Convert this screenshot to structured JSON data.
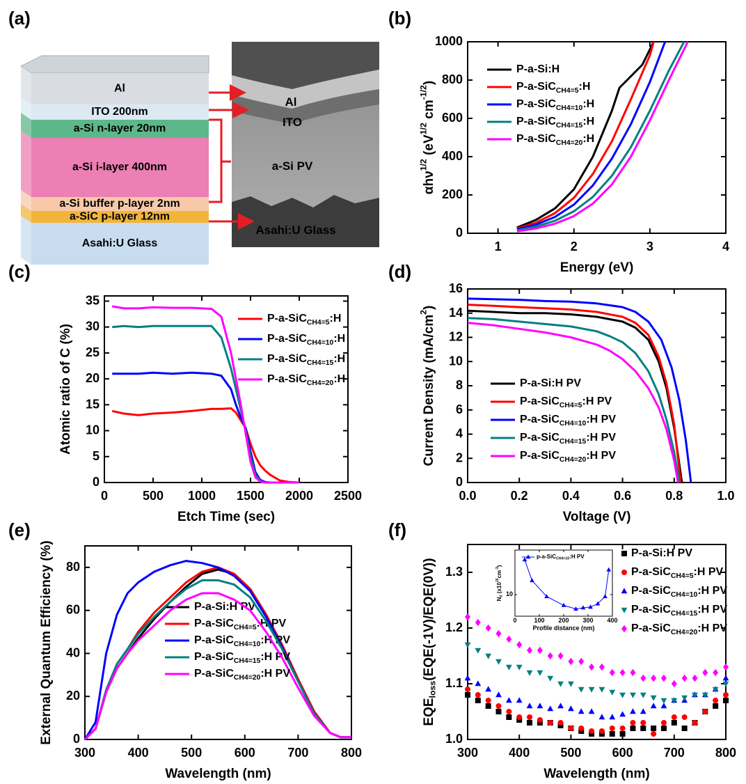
{
  "diagram": {
    "panel_label": "(a)",
    "layers": [
      {
        "label": "Al",
        "color": "#d9dde2"
      },
      {
        "label": "ITO 200nm",
        "color": "#dce9f3"
      },
      {
        "label": "a-Si n-layer  20nm",
        "color": "#5cb88a"
      },
      {
        "label": "a-Si i-layer 400nm",
        "color": "#ec7fb4"
      },
      {
        "label": "a-Si buffer p-layer 2nm",
        "color": "#f7c9a8"
      },
      {
        "label": "a-SiC p-layer 12nm",
        "color": "#f2b53a"
      },
      {
        "label": "Asahi:U Glass",
        "color": "#c7dcef"
      }
    ],
    "tem_labels": [
      "Al",
      "ITO",
      "a-Si PV",
      "Asahi:U Glass"
    ]
  },
  "chart_data": [
    {
      "type": "line",
      "panel_label": "(b)",
      "x_label": "Energy (eV)",
      "y_label": "αhν^{1/2} (eV^{1/2} cm^{-1/2})",
      "xlim": [
        0.6,
        4
      ],
      "xticks": [
        1,
        2,
        3,
        4
      ],
      "ylim": [
        0,
        1000
      ],
      "yticks": [
        0,
        200,
        400,
        600,
        800,
        1000
      ],
      "legend": "upper left",
      "series": [
        {
          "name": "P-a-Si:H",
          "color": "#000000",
          "x": [
            1.25,
            1.5,
            1.75,
            2.0,
            2.25,
            2.5,
            2.6,
            2.75,
            2.9,
            3.05
          ],
          "values": [
            30,
            70,
            130,
            230,
            400,
            640,
            760,
            820,
            880,
            1000
          ]
        },
        {
          "name": "P-a-SiC_{CH4=5}:H",
          "color": "#ff0000",
          "x": [
            1.25,
            1.5,
            1.75,
            2.0,
            2.25,
            2.5,
            2.75,
            3.0,
            3.05
          ],
          "values": [
            25,
            55,
            105,
            185,
            310,
            480,
            700,
            930,
            1000
          ]
        },
        {
          "name": "P-a-SiC_{CH4=10}:H",
          "color": "#0000ff",
          "x": [
            1.25,
            1.5,
            1.75,
            2.0,
            2.25,
            2.5,
            2.75,
            3.0,
            3.2
          ],
          "values": [
            20,
            45,
            85,
            150,
            250,
            390,
            570,
            790,
            1000
          ]
        },
        {
          "name": "P-a-SiC_{CH4=15}:H",
          "color": "#008080",
          "x": [
            1.25,
            1.5,
            1.75,
            2.0,
            2.25,
            2.5,
            2.75,
            3.0,
            3.25,
            3.45
          ],
          "values": [
            15,
            35,
            65,
            115,
            190,
            300,
            450,
            640,
            850,
            1000
          ]
        },
        {
          "name": "P-a-SiC_{CH4=20}:H",
          "color": "#ff00ff",
          "x": [
            1.25,
            1.5,
            1.75,
            2.0,
            2.25,
            2.5,
            2.75,
            3.0,
            3.25,
            3.5
          ],
          "values": [
            10,
            25,
            50,
            90,
            155,
            255,
            400,
            590,
            800,
            1000
          ]
        }
      ]
    },
    {
      "type": "line",
      "panel_label": "(c)",
      "x_label": "Etch Time (sec)",
      "y_label": "Atomic ratio of C (%)",
      "xlim": [
        0,
        2500
      ],
      "xticks": [
        0,
        500,
        1000,
        1500,
        2000,
        2500
      ],
      "ylim": [
        0,
        36
      ],
      "yticks": [
        0,
        5,
        10,
        15,
        20,
        25,
        30,
        35
      ],
      "legend": "upper right",
      "x": [
        80,
        200,
        350,
        500,
        700,
        900,
        1100,
        1200,
        1300,
        1350,
        1400,
        1450,
        1500,
        1550,
        1600,
        1650,
        1700,
        1800,
        1900,
        2000
      ],
      "series": [
        {
          "name": "P-a-SiC_{CH4=5}:H",
          "color": "#ff0000",
          "values": [
            13.8,
            13.3,
            13.0,
            13.3,
            13.5,
            13.8,
            14.2,
            14.2,
            14.3,
            13.5,
            12,
            10.5,
            7.5,
            5,
            3.3,
            2.3,
            1.5,
            0.4,
            0.1,
            0
          ]
        },
        {
          "name": "P-a-SiC_{CH4=10}:H",
          "color": "#0000ff",
          "values": [
            21,
            21,
            21,
            21.2,
            21,
            21.2,
            21,
            20.6,
            18,
            15,
            12.5,
            10.5,
            6,
            2,
            0.5,
            0.1,
            0,
            0,
            0,
            0
          ]
        },
        {
          "name": "P-a-SiC_{CH4=15}:H",
          "color": "#008080",
          "values": [
            30,
            30.2,
            30,
            30.2,
            30.2,
            30.2,
            30.2,
            28,
            22,
            18,
            14,
            10,
            5,
            1.5,
            0.3,
            0,
            0,
            0,
            0,
            0
          ]
        },
        {
          "name": "P-a-SiC_{CH4=20}:H",
          "color": "#ff00ff",
          "values": [
            34,
            33.6,
            33.6,
            33.8,
            33.7,
            33.7,
            33.5,
            32,
            25,
            20,
            15,
            9.5,
            4,
            1,
            0.2,
            0,
            0,
            0,
            0,
            0
          ]
        }
      ]
    },
    {
      "type": "line",
      "panel_label": "(d)",
      "x_label": "Voltage (V)",
      "y_label": "Current Density (mA/cm^{2})",
      "xlim": [
        0,
        1
      ],
      "xticks": [
        {
          "value": 0,
          "label": "0.0"
        },
        0.2,
        0.4,
        0.6,
        0.8,
        {
          "value": 1,
          "label": "1.0"
        }
      ],
      "ylim": [
        0,
        16
      ],
      "yticks": [
        0,
        2,
        4,
        6,
        8,
        10,
        12,
        14,
        16
      ],
      "legend": "lower left",
      "series": [
        {
          "name": "P-a-Si:H PV",
          "color": "#000000",
          "x": [
            0,
            0.1,
            0.2,
            0.3,
            0.4,
            0.5,
            0.6,
            0.65,
            0.7,
            0.74,
            0.77,
            0.8,
            0.83
          ],
          "values": [
            14.2,
            14.1,
            14.0,
            14.0,
            13.9,
            13.7,
            13.3,
            12.8,
            11.8,
            10,
            7.8,
            4.5,
            0
          ]
        },
        {
          "name": "P-a-SiC_{CH4=5}:H PV",
          "color": "#ff0000",
          "x": [
            0,
            0.1,
            0.2,
            0.3,
            0.4,
            0.5,
            0.6,
            0.65,
            0.7,
            0.74,
            0.77,
            0.8,
            0.825
          ],
          "values": [
            14.7,
            14.6,
            14.5,
            14.4,
            14.3,
            14.1,
            13.7,
            13.2,
            12.2,
            10.4,
            8.2,
            4.8,
            0
          ]
        },
        {
          "name": "P-a-SiC_{CH4=10}:H PV",
          "color": "#0000ff",
          "x": [
            0,
            0.1,
            0.2,
            0.3,
            0.4,
            0.5,
            0.6,
            0.65,
            0.7,
            0.75,
            0.79,
            0.82,
            0.845,
            0.865
          ],
          "values": [
            15.2,
            15.15,
            15.1,
            15.0,
            14.95,
            14.8,
            14.5,
            14.1,
            13.3,
            11.8,
            9.5,
            6.8,
            3.5,
            0
          ]
        },
        {
          "name": "P-a-SiC_{CH4=15}:H PV",
          "color": "#008080",
          "x": [
            0,
            0.1,
            0.2,
            0.3,
            0.4,
            0.5,
            0.55,
            0.6,
            0.65,
            0.7,
            0.74,
            0.77,
            0.8,
            0.82
          ],
          "values": [
            13.6,
            13.5,
            13.3,
            13.1,
            12.9,
            12.5,
            12.1,
            11.6,
            10.7,
            9.2,
            7.3,
            5.2,
            2.5,
            0
          ]
        },
        {
          "name": "P-a-SiC_{CH4=20}:H PV",
          "color": "#ff00ff",
          "x": [
            0,
            0.1,
            0.2,
            0.3,
            0.4,
            0.5,
            0.55,
            0.6,
            0.65,
            0.7,
            0.74,
            0.77,
            0.8,
            0.815
          ],
          "values": [
            13.2,
            13.0,
            12.7,
            12.4,
            12.0,
            11.4,
            10.9,
            10.2,
            9.2,
            7.8,
            6.2,
            4.4,
            1.8,
            0
          ]
        }
      ]
    },
    {
      "type": "line",
      "panel_label": "(e)",
      "x_label": "Wavelength (nm)",
      "y_label": "External Quantum Efficiency (%)",
      "xlim": [
        300,
        800
      ],
      "xticks": [
        300,
        400,
        500,
        600,
        700,
        800
      ],
      "ylim": [
        0,
        90
      ],
      "yticks": [
        0,
        20,
        40,
        60,
        80
      ],
      "legend": "lower left",
      "x": [
        300,
        320,
        340,
        360,
        380,
        400,
        430,
        460,
        490,
        520,
        550,
        580,
        610,
        640,
        670,
        700,
        730,
        760,
        780,
        800
      ],
      "series": [
        {
          "name": "P-a-Si:H PV",
          "color": "#000000",
          "values": [
            0,
            5,
            22,
            33,
            40,
            47,
            56,
            64,
            71,
            77,
            79,
            77,
            70,
            58,
            44,
            28,
            13,
            3,
            1,
            1
          ]
        },
        {
          "name": "P-a-SiC_{CH4=5}:H PV",
          "color": "#ff0000",
          "values": [
            0,
            5,
            23,
            35,
            42,
            50,
            59,
            66,
            73,
            78,
            80,
            77,
            70,
            58,
            44,
            28,
            13,
            3,
            1,
            1
          ]
        },
        {
          "name": "P-a-SiC_{CH4=10}:H PV",
          "color": "#0000ff",
          "values": [
            0,
            8,
            40,
            58,
            68,
            73,
            78,
            81,
            83,
            82,
            80,
            76,
            69,
            57,
            43,
            27,
            12,
            3,
            1,
            1
          ]
        },
        {
          "name": "P-a-SiC_{CH4=15}:H PV",
          "color": "#008080",
          "values": [
            0,
            5,
            23,
            35,
            42,
            49,
            57,
            64,
            70,
            74,
            74,
            72,
            66,
            55,
            42,
            27,
            12,
            3,
            1,
            1
          ]
        },
        {
          "name": "P-a-SiC_{CH4=20}:H PV",
          "color": "#ff00ff",
          "values": [
            0,
            5,
            22,
            33,
            40,
            46,
            53,
            60,
            65,
            68,
            68,
            65,
            60,
            50,
            38,
            24,
            11,
            3,
            1,
            1
          ]
        }
      ]
    },
    {
      "type": "scatter",
      "panel_label": "(f)",
      "x_label": "Wavelength (nm)",
      "y_label": "EQE_{loss}(EQE(-1V)/EQE(0V))",
      "xlim": [
        300,
        800
      ],
      "xticks": [
        300,
        400,
        500,
        600,
        700,
        800
      ],
      "ylim": [
        1.0,
        1.35
      ],
      "yticks": [
        {
          "value": 1.0,
          "label": "1.0"
        },
        1.1,
        1.2,
        1.3
      ],
      "legend": "upper right",
      "x": [
        300,
        320,
        340,
        360,
        380,
        400,
        420,
        440,
        460,
        480,
        500,
        520,
        540,
        560,
        580,
        600,
        620,
        640,
        660,
        680,
        700,
        720,
        740,
        760,
        780,
        800
      ],
      "series": [
        {
          "name": "P-a-Si:H PV",
          "color": "#000000",
          "marker": "square",
          "values": [
            1.08,
            1.07,
            1.06,
            1.05,
            1.04,
            1.035,
            1.03,
            1.03,
            1.03,
            1.025,
            1.02,
            1.015,
            1.01,
            1.01,
            1.01,
            1.01,
            1.02,
            1.02,
            1.02,
            1.02,
            1.03,
            1.02,
            1.03,
            1.05,
            1.06,
            1.07
          ]
        },
        {
          "name": "P-a-SiC_{CH4=5}:H PV",
          "color": "#ff0000",
          "marker": "circle",
          "values": [
            1.09,
            1.08,
            1.07,
            1.06,
            1.05,
            1.04,
            1.04,
            1.035,
            1.03,
            1.03,
            1.02,
            1.02,
            1.015,
            1.015,
            1.02,
            1.02,
            1.03,
            1.03,
            1.01,
            1.03,
            1.04,
            1.04,
            1.03,
            1.05,
            1.07,
            1.08
          ]
        },
        {
          "name": "P-a-SiC_{CH4=10}:H PV",
          "color": "#0000ff",
          "marker": "triangle-up",
          "values": [
            1.11,
            1.1,
            1.09,
            1.08,
            1.07,
            1.07,
            1.06,
            1.06,
            1.055,
            1.06,
            1.055,
            1.05,
            1.05,
            1.04,
            1.04,
            1.045,
            1.05,
            1.05,
            1.06,
            1.06,
            1.07,
            1.07,
            1.08,
            1.08,
            1.09,
            1.11
          ]
        },
        {
          "name": "P-a-SiC_{CH4=15}:H PV",
          "color": "#008080",
          "marker": "triangle-down",
          "values": [
            1.17,
            1.16,
            1.15,
            1.14,
            1.13,
            1.13,
            1.12,
            1.12,
            1.11,
            1.1,
            1.1,
            1.09,
            1.09,
            1.09,
            1.085,
            1.08,
            1.08,
            1.08,
            1.075,
            1.07,
            1.07,
            1.075,
            1.08,
            1.08,
            1.09,
            1.1
          ]
        },
        {
          "name": "P-a-SiC_{CH4=20}:H PV",
          "color": "#ff00ff",
          "marker": "diamond",
          "values": [
            1.22,
            1.21,
            1.2,
            1.19,
            1.18,
            1.17,
            1.16,
            1.16,
            1.15,
            1.15,
            1.14,
            1.14,
            1.13,
            1.13,
            1.12,
            1.12,
            1.12,
            1.11,
            1.11,
            1.11,
            1.1,
            1.11,
            1.11,
            1.12,
            1.12,
            1.13
          ]
        }
      ]
    },
    {
      "type": "line",
      "x_label": "Profile distance (nm)",
      "y_label": "N_{d} (x10^{15}cm^{-3})",
      "xlim": [
        0,
        400
      ],
      "xticks": [
        0,
        100,
        200,
        300,
        400
      ],
      "ylim": [
        3,
        120
      ],
      "yticks": [
        10
      ],
      "log_y": true,
      "legend": "upper left",
      "series": [
        {
          "name": "p-a-SiC_{CH4=10}:H PV",
          "color": "#0000ff",
          "marker": "triangle-up",
          "x": [
            40,
            70,
            130,
            200,
            250,
            280,
            310,
            340,
            370,
            385
          ],
          "values": [
            70,
            22,
            9,
            5.5,
            4.5,
            4.8,
            5,
            6,
            9,
            40
          ]
        }
      ]
    }
  ]
}
